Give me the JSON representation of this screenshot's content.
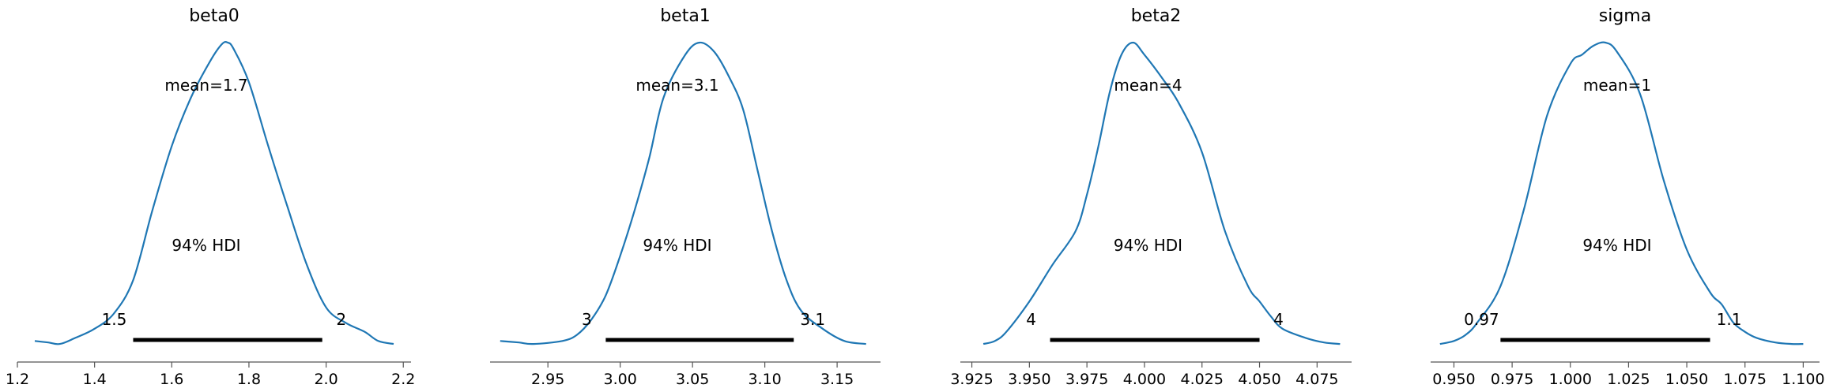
{
  "figure": {
    "line_color": "#1f77b4",
    "hdi_color": "#000000",
    "axis_color": "#555555"
  },
  "chart_data": [
    {
      "type": "line",
      "title": "beta0",
      "mean_label": "mean=1.7",
      "hdi_label": "94% HDI",
      "hdi": [
        1.5,
        1.99
      ],
      "hdi_low_label": "1.5",
      "hdi_high_label": "2",
      "xlim": [
        1.2,
        2.22
      ],
      "xticks": [
        1.2,
        1.4,
        1.6,
        1.8,
        2.0,
        2.2
      ],
      "xtick_labels": [
        "1.2",
        "1.4",
        "1.6",
        "1.8",
        "2.0",
        "2.2"
      ],
      "density": {
        "x": [
          1.245,
          1.28,
          1.31,
          1.35,
          1.4,
          1.45,
          1.5,
          1.55,
          1.6,
          1.65,
          1.7,
          1.73,
          1.745,
          1.76,
          1.8,
          1.85,
          1.9,
          1.95,
          2.0,
          2.05,
          2.1,
          2.135,
          2.175
        ],
        "y": [
          0.02,
          0.015,
          0.01,
          0.03,
          0.06,
          0.11,
          0.22,
          0.45,
          0.66,
          0.82,
          0.94,
          0.995,
          1.0,
          0.98,
          0.87,
          0.66,
          0.46,
          0.27,
          0.13,
          0.08,
          0.05,
          0.02,
          0.01
        ]
      }
    },
    {
      "type": "line",
      "title": "beta1",
      "mean_label": "mean=3.1",
      "hdi_label": "94% HDI",
      "hdi": [
        2.99,
        3.12
      ],
      "hdi_low_label": "3",
      "hdi_high_label": "3.1",
      "xlim": [
        2.91,
        3.18
      ],
      "xticks": [
        2.95,
        3.0,
        3.05,
        3.1,
        3.15
      ],
      "xtick_labels": [
        "2.95",
        "3.00",
        "3.05",
        "3.10",
        "3.15"
      ],
      "density": {
        "x": [
          2.917,
          2.93,
          2.94,
          2.96,
          2.97,
          2.98,
          2.99,
          3.0,
          3.01,
          3.02,
          3.03,
          3.045,
          3.055,
          3.065,
          3.075,
          3.085,
          3.095,
          3.105,
          3.115,
          3.125,
          3.14,
          3.155,
          3.17
        ],
        "y": [
          0.02,
          0.015,
          0.01,
          0.02,
          0.04,
          0.09,
          0.17,
          0.3,
          0.45,
          0.62,
          0.82,
          0.96,
          1.0,
          0.97,
          0.89,
          0.78,
          0.58,
          0.38,
          0.22,
          0.12,
          0.06,
          0.02,
          0.01
        ]
      }
    },
    {
      "type": "line",
      "title": "beta2",
      "mean_label": "mean=4",
      "hdi_label": "94% HDI",
      "hdi": [
        3.959,
        4.05
      ],
      "hdi_low_label": "4",
      "hdi_high_label": "4",
      "xlim": [
        3.92,
        4.09
      ],
      "xticks": [
        3.925,
        3.95,
        3.975,
        4.0,
        4.025,
        4.05,
        4.075
      ],
      "xtick_labels": [
        "3.925",
        "3.950",
        "3.975",
        "4.000",
        "4.025",
        "4.050",
        "4.075"
      ],
      "density": {
        "x": [
          3.93,
          3.935,
          3.94,
          3.95,
          3.96,
          3.97,
          3.975,
          3.98,
          3.985,
          3.99,
          3.995,
          4.0,
          4.008,
          4.015,
          4.025,
          4.035,
          4.045,
          4.05,
          4.055,
          4.06,
          4.07,
          4.078,
          4.085
        ],
        "y": [
          0.01,
          0.02,
          0.05,
          0.15,
          0.27,
          0.38,
          0.5,
          0.66,
          0.84,
          0.96,
          1.0,
          0.96,
          0.88,
          0.8,
          0.64,
          0.38,
          0.2,
          0.15,
          0.1,
          0.06,
          0.03,
          0.015,
          0.01
        ]
      }
    },
    {
      "type": "line",
      "title": "sigma",
      "mean_label": "mean=1",
      "hdi_label": "94% HDI",
      "hdi": [
        0.97,
        1.06
      ],
      "hdi_low_label": "0.97",
      "hdi_high_label": "1.1",
      "xlim": [
        0.94,
        1.107
      ],
      "xticks": [
        0.95,
        0.975,
        1.0,
        1.025,
        1.05,
        1.075,
        1.1
      ],
      "xtick_labels": [
        "0.950",
        "0.975",
        "1.000",
        "1.025",
        "1.050",
        "1.075",
        "1.100"
      ],
      "density": {
        "x": [
          0.944,
          0.95,
          0.955,
          0.96,
          0.97,
          0.98,
          0.99,
          1.0,
          1.005,
          1.01,
          1.015,
          1.02,
          1.03,
          1.04,
          1.05,
          1.06,
          1.065,
          1.07,
          1.075,
          1.08,
          1.088,
          1.095,
          1.1
        ],
        "y": [
          0.01,
          0.02,
          0.04,
          0.08,
          0.2,
          0.45,
          0.76,
          0.93,
          0.96,
          0.99,
          1.0,
          0.97,
          0.83,
          0.55,
          0.32,
          0.18,
          0.14,
          0.08,
          0.05,
          0.03,
          0.015,
          0.01,
          0.01
        ]
      }
    }
  ]
}
